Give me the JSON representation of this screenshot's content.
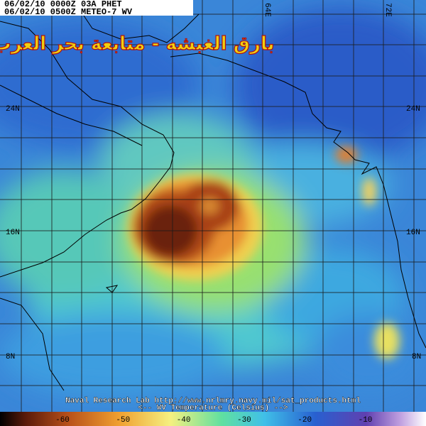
{
  "header": {
    "line1": "06/02/10 0000Z  03A PHET",
    "line2": "06/02/10 0500Z  METEO-7 WV"
  },
  "overlay_title": "بارق الغبشه - متابعة بحر العرب",
  "latitude_labels": {
    "left": [
      "24N",
      "16N",
      "8N"
    ],
    "right": [
      "24N",
      "16N",
      "8N"
    ]
  },
  "longitude_labels": [
    "64E",
    "72E"
  ],
  "footer": {
    "credit": "Naval Research Lab http://www.nrlmry.navy.mil/sat_products.html",
    "legend_title": "<--  WV Temperature (Celsius)  -->"
  },
  "colorbar": {
    "ticks": [
      -60,
      -50,
      -40,
      -30,
      -20,
      -10
    ]
  }
}
